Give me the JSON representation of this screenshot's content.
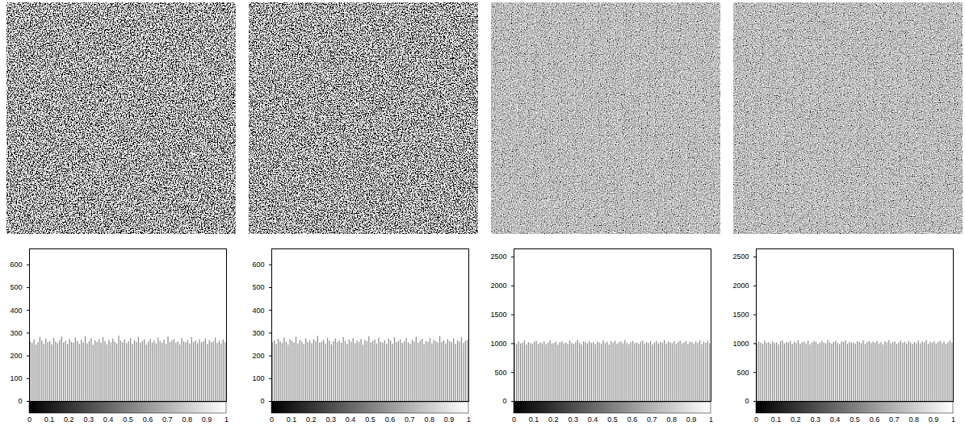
{
  "chart_data": [
    {
      "type": "histogram",
      "color": "#8c8c8c",
      "bins": [
        0,
        0.01,
        0.02,
        0.03,
        0.04,
        0.05,
        0.06,
        0.07,
        0.08,
        0.09,
        0.1,
        0.11,
        0.12,
        0.13,
        0.14,
        0.15,
        0.16,
        0.17,
        0.18,
        0.19,
        0.2,
        0.21,
        0.22,
        0.23,
        0.24,
        0.25,
        0.26,
        0.27,
        0.28,
        0.29,
        0.3,
        0.31,
        0.32,
        0.33,
        0.34,
        0.35,
        0.36,
        0.37,
        0.38,
        0.39,
        0.4,
        0.41,
        0.42,
        0.43,
        0.44,
        0.45,
        0.46,
        0.47,
        0.48,
        0.49,
        0.5,
        0.51,
        0.52,
        0.53,
        0.54,
        0.55,
        0.56,
        0.57,
        0.58,
        0.59,
        0.6,
        0.61,
        0.62,
        0.63,
        0.64,
        0.65,
        0.66,
        0.67,
        0.68,
        0.69,
        0.7,
        0.71,
        0.72,
        0.73,
        0.74,
        0.75,
        0.76,
        0.77,
        0.78,
        0.79,
        0.8,
        0.81,
        0.82,
        0.83,
        0.84,
        0.85,
        0.86,
        0.87,
        0.88,
        0.89,
        0.9,
        0.91,
        0.92,
        0.93,
        0.94,
        0.95,
        0.96,
        0.97,
        0.98,
        0.99,
        1
      ],
      "values": [
        262,
        255,
        270,
        248,
        259,
        281,
        266,
        252,
        274,
        258,
        263,
        249,
        277,
        261,
        254,
        268,
        283,
        257,
        265,
        250,
        272,
        260,
        256,
        279,
        264,
        251,
        269,
        258,
        285,
        253,
        262,
        275,
        247,
        266,
        259,
        271,
        256,
        280,
        263,
        249,
        268,
        257,
        274,
        261,
        252,
        287,
        265,
        258,
        270,
        254,
        263,
        276,
        250,
        267,
        259,
        282,
        256,
        264,
        271,
        248,
        260,
        273,
        257,
        266,
        253,
        278,
        262,
        255,
        269,
        251,
        284,
        259,
        265,
        272,
        256,
        261,
        249,
        276,
        263,
        258,
        268,
        252,
        280,
        260,
        266,
        254,
        271,
        257,
        263,
        275,
        250,
        267,
        259,
        262,
        278,
        255,
        264,
        253,
        270,
        258
      ],
      "xlim": [
        0,
        1
      ],
      "xticks": [
        0,
        0.1,
        0.2,
        0.3,
        0.4,
        0.5,
        0.6,
        0.7,
        0.8,
        0.9,
        1
      ],
      "ylim": [
        0,
        670
      ],
      "yticks": [
        0,
        100,
        200,
        300,
        400,
        500,
        600
      ]
    },
    {
      "type": "histogram",
      "color": "#8c8c8c",
      "bins": [
        0,
        0.01,
        0.02,
        0.03,
        0.04,
        0.05,
        0.06,
        0.07,
        0.08,
        0.09,
        0.1,
        0.11,
        0.12,
        0.13,
        0.14,
        0.15,
        0.16,
        0.17,
        0.18,
        0.19,
        0.2,
        0.21,
        0.22,
        0.23,
        0.24,
        0.25,
        0.26,
        0.27,
        0.28,
        0.29,
        0.3,
        0.31,
        0.32,
        0.33,
        0.34,
        0.35,
        0.36,
        0.37,
        0.38,
        0.39,
        0.4,
        0.41,
        0.42,
        0.43,
        0.44,
        0.45,
        0.46,
        0.47,
        0.48,
        0.49,
        0.5,
        0.51,
        0.52,
        0.53,
        0.54,
        0.55,
        0.56,
        0.57,
        0.58,
        0.59,
        0.6,
        0.61,
        0.62,
        0.63,
        0.64,
        0.65,
        0.66,
        0.67,
        0.68,
        0.69,
        0.7,
        0.71,
        0.72,
        0.73,
        0.74,
        0.75,
        0.76,
        0.77,
        0.78,
        0.79,
        0.8,
        0.81,
        0.82,
        0.83,
        0.84,
        0.85,
        0.86,
        0.87,
        0.88,
        0.89,
        0.9,
        0.91,
        0.92,
        0.93,
        0.94,
        0.95,
        0.96,
        0.97,
        0.98,
        0.99,
        1
      ],
      "values": [
        258,
        266,
        251,
        273,
        262,
        255,
        279,
        260,
        248,
        270,
        264,
        257,
        282,
        253,
        268,
        261,
        250,
        275,
        259,
        266,
        254,
        271,
        263,
        286,
        256,
        260,
        269,
        252,
        277,
        265,
        249,
        262,
        274,
        258,
        267,
        255,
        281,
        263,
        251,
        270,
        260,
        276,
        254,
        265,
        259,
        272,
        248,
        268,
        262,
        284,
        257,
        263,
        270,
        253,
        278,
        261,
        256,
        267,
        250,
        274,
        266,
        252,
        280,
        259,
        263,
        271,
        255,
        262,
        276,
        258,
        251,
        269,
        261,
        283,
        256,
        265,
        273,
        249,
        264,
        260,
        277,
        254,
        268,
        262,
        257,
        286,
        259,
        266,
        252,
        271,
        263,
        258,
        275,
        250,
        267,
        261,
        279,
        255,
        264,
        269
      ],
      "xlim": [
        0,
        1
      ],
      "xticks": [
        0,
        0.1,
        0.2,
        0.3,
        0.4,
        0.5,
        0.6,
        0.7,
        0.8,
        0.9,
        1
      ],
      "ylim": [
        0,
        670
      ],
      "yticks": [
        0,
        100,
        200,
        300,
        400,
        500,
        600
      ]
    },
    {
      "type": "histogram",
      "color": "#8c8c8c",
      "bins": [
        0,
        0.01,
        0.02,
        0.03,
        0.04,
        0.05,
        0.06,
        0.07,
        0.08,
        0.09,
        0.1,
        0.11,
        0.12,
        0.13,
        0.14,
        0.15,
        0.16,
        0.17,
        0.18,
        0.19,
        0.2,
        0.21,
        0.22,
        0.23,
        0.24,
        0.25,
        0.26,
        0.27,
        0.28,
        0.29,
        0.3,
        0.31,
        0.32,
        0.33,
        0.34,
        0.35,
        0.36,
        0.37,
        0.38,
        0.39,
        0.4,
        0.41,
        0.42,
        0.43,
        0.44,
        0.45,
        0.46,
        0.47,
        0.48,
        0.49,
        0.5,
        0.51,
        0.52,
        0.53,
        0.54,
        0.55,
        0.56,
        0.57,
        0.58,
        0.59,
        0.6,
        0.61,
        0.62,
        0.63,
        0.64,
        0.65,
        0.66,
        0.67,
        0.68,
        0.69,
        0.7,
        0.71,
        0.72,
        0.73,
        0.74,
        0.75,
        0.76,
        0.77,
        0.78,
        0.79,
        0.8,
        0.81,
        0.82,
        0.83,
        0.84,
        0.85,
        0.86,
        0.87,
        0.88,
        0.89,
        0.9,
        0.91,
        0.92,
        0.93,
        0.94,
        0.95,
        0.96,
        0.97,
        0.98,
        0.99,
        1
      ],
      "values": [
        1012,
        986,
        1031,
        995,
        1008,
        1047,
        979,
        1020,
        1003,
        991,
        1025,
        1040,
        988,
        1014,
        997,
        1033,
        982,
        1009,
        1051,
        994,
        1005,
        1028,
        976,
        1017,
        1036,
        999,
        1011,
        985,
        1044,
        1002,
        990,
        1022,
        1058,
        1007,
        981,
        1030,
        1015,
        996,
        1039,
        1004,
        1019,
        984,
        1027,
        1010,
        993,
        1049,
        1001,
        1024,
        978,
        1035,
        1008,
        1042,
        989,
        1016,
        1031,
        997,
        1054,
        1006,
        983,
        1021,
        1037,
        1000,
        1013,
        987,
        1026,
        1045,
        994,
        1018,
        1003,
        1032,
        980,
        1011,
        1040,
        998,
        1023,
        1009,
        1056,
        992,
        1029,
        1014,
        1001,
        1034,
        985,
        1020,
        1047,
        996,
        1012,
        1038,
        988,
        1025,
        1016,
        993,
        1030,
        1004,
        1050,
        983,
        1022,
        1007,
        1041,
        999
      ],
      "xlim": [
        0,
        1
      ],
      "xticks": [
        0,
        0.1,
        0.2,
        0.3,
        0.4,
        0.5,
        0.6,
        0.7,
        0.8,
        0.9,
        1
      ],
      "ylim": [
        0,
        2640
      ],
      "yticks": [
        0,
        500,
        1000,
        1500,
        2000,
        2500
      ]
    },
    {
      "type": "histogram",
      "color": "#8c8c8c",
      "bins": [
        0,
        0.01,
        0.02,
        0.03,
        0.04,
        0.05,
        0.06,
        0.07,
        0.08,
        0.09,
        0.1,
        0.11,
        0.12,
        0.13,
        0.14,
        0.15,
        0.16,
        0.17,
        0.18,
        0.19,
        0.2,
        0.21,
        0.22,
        0.23,
        0.24,
        0.25,
        0.26,
        0.27,
        0.28,
        0.29,
        0.3,
        0.31,
        0.32,
        0.33,
        0.34,
        0.35,
        0.36,
        0.37,
        0.38,
        0.39,
        0.4,
        0.41,
        0.42,
        0.43,
        0.44,
        0.45,
        0.46,
        0.47,
        0.48,
        0.49,
        0.5,
        0.51,
        0.52,
        0.53,
        0.54,
        0.55,
        0.56,
        0.57,
        0.58,
        0.59,
        0.6,
        0.61,
        0.62,
        0.63,
        0.64,
        0.65,
        0.66,
        0.67,
        0.68,
        0.69,
        0.7,
        0.71,
        0.72,
        0.73,
        0.74,
        0.75,
        0.76,
        0.77,
        0.78,
        0.79,
        0.8,
        0.81,
        0.82,
        0.83,
        0.84,
        0.85,
        0.86,
        0.87,
        0.88,
        0.89,
        0.9,
        0.91,
        0.92,
        0.93,
        0.94,
        0.95,
        0.96,
        0.97,
        0.98,
        0.99,
        1
      ],
      "values": [
        998,
        1027,
        1010,
        984,
        1043,
        1006,
        1019,
        991,
        1035,
        1002,
        1015,
        980,
        1032,
        1048,
        995,
        1021,
        1009,
        1038,
        986,
        1024,
        1003,
        1051,
        992,
        1017,
        1029,
        1000,
        1044,
        982,
        1013,
        1036,
        1026,
        989,
        1008,
        1040,
        1014,
        997,
        1055,
        1011,
        993,
        1022,
        1039,
        1005,
        983,
        1030,
        1018,
        1046,
        990,
        1025,
        1007,
        1012,
        994,
        1033,
        1020,
        1001,
        1049,
        987,
        1016,
        1037,
        1004,
        1028,
        1010,
        1042,
        996,
        1023,
        981,
        1034,
        1012,
        1053,
        999,
        1019,
        1031,
        988,
        1015,
        1045,
        1006,
        1026,
        992,
        1039,
        1011,
        985,
        1021,
        1002,
        1048,
        997,
        1030,
        1014,
        1057,
        990,
        1024,
        1008,
        1036,
        995,
        1018,
        1041,
        1003,
        1027,
        986,
        1012,
        1045,
        1009
      ],
      "xlim": [
        0,
        1
      ],
      "xticks": [
        0,
        0.1,
        0.2,
        0.3,
        0.4,
        0.5,
        0.6,
        0.7,
        0.8,
        0.9,
        1
      ],
      "ylim": [
        0,
        2640
      ],
      "yticks": [
        0,
        500,
        1000,
        1500,
        2000,
        2500
      ]
    }
  ]
}
